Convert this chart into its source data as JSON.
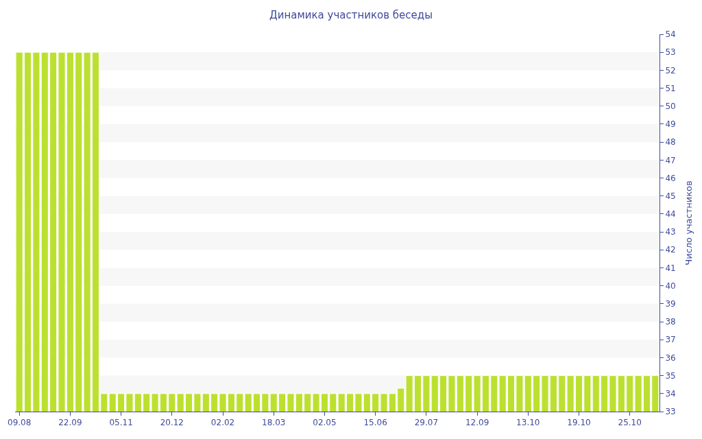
{
  "chart_data": {
    "type": "bar",
    "title": "Динамика участников беседы",
    "ylabel": "Число участников",
    "categories": [
      "09.08",
      null,
      null,
      null,
      null,
      null,
      "22.09",
      null,
      null,
      null,
      null,
      null,
      "05.11",
      null,
      null,
      null,
      null,
      null,
      "20.12",
      null,
      null,
      null,
      null,
      null,
      "02.02",
      null,
      null,
      null,
      null,
      null,
      "18.03",
      null,
      null,
      null,
      null,
      null,
      "02.05",
      null,
      null,
      null,
      null,
      null,
      "15.06",
      null,
      null,
      null,
      null,
      null,
      "29.07",
      null,
      null,
      null,
      null,
      null,
      "12.09",
      null,
      null,
      null,
      null,
      null,
      "13.10",
      null,
      null,
      null,
      null,
      null,
      "19.10",
      null,
      null,
      null,
      null,
      null,
      "25.10",
      null,
      null,
      null
    ],
    "values": [
      53,
      53,
      53,
      53,
      53,
      53,
      53,
      53,
      53,
      53,
      34,
      34,
      34,
      34,
      34,
      34,
      34,
      34,
      34,
      34,
      34,
      34,
      34,
      34,
      34,
      34,
      34,
      34,
      34,
      34,
      34,
      34,
      34,
      34,
      34,
      34,
      34,
      34,
      34,
      34,
      34,
      34,
      34,
      34,
      34,
      34.3,
      35,
      35,
      35,
      35,
      35,
      35,
      35,
      35,
      35,
      35,
      35,
      35,
      35,
      35,
      35,
      35,
      35,
      35,
      35,
      35,
      35,
      35,
      35,
      35,
      35,
      35,
      35,
      35,
      35,
      35
    ],
    "color": "#bce030",
    "ylim": [
      33,
      54
    ],
    "yticks": [
      33,
      34,
      35,
      36,
      37,
      38,
      39,
      40,
      41,
      42,
      43,
      44,
      45,
      46,
      47,
      48,
      49,
      50,
      51,
      52,
      53,
      54
    ],
    "bands": [
      {
        "axis": "y",
        "from": 34,
        "to": 35,
        "color": "#f7f7f7"
      },
      {
        "axis": "y",
        "from": 36,
        "to": 37,
        "color": "#f7f7f7"
      },
      {
        "axis": "y",
        "from": 38,
        "to": 39,
        "color": "#f7f7f7"
      },
      {
        "axis": "y",
        "from": 40,
        "to": 41,
        "color": "#f7f7f7"
      },
      {
        "axis": "y",
        "from": 42,
        "to": 43,
        "color": "#f7f7f7"
      },
      {
        "axis": "y",
        "from": 44,
        "to": 45,
        "color": "#f7f7f7"
      },
      {
        "axis": "y",
        "from": 46,
        "to": 47,
        "color": "#f7f7f7"
      },
      {
        "axis": "y",
        "from": 48,
        "to": 49,
        "color": "#f7f7f7"
      },
      {
        "axis": "y",
        "from": 50,
        "to": 51,
        "color": "#f7f7f7"
      },
      {
        "axis": "y",
        "from": 52,
        "to": 53,
        "color": "#f7f7f7"
      }
    ],
    "grid": false
  }
}
